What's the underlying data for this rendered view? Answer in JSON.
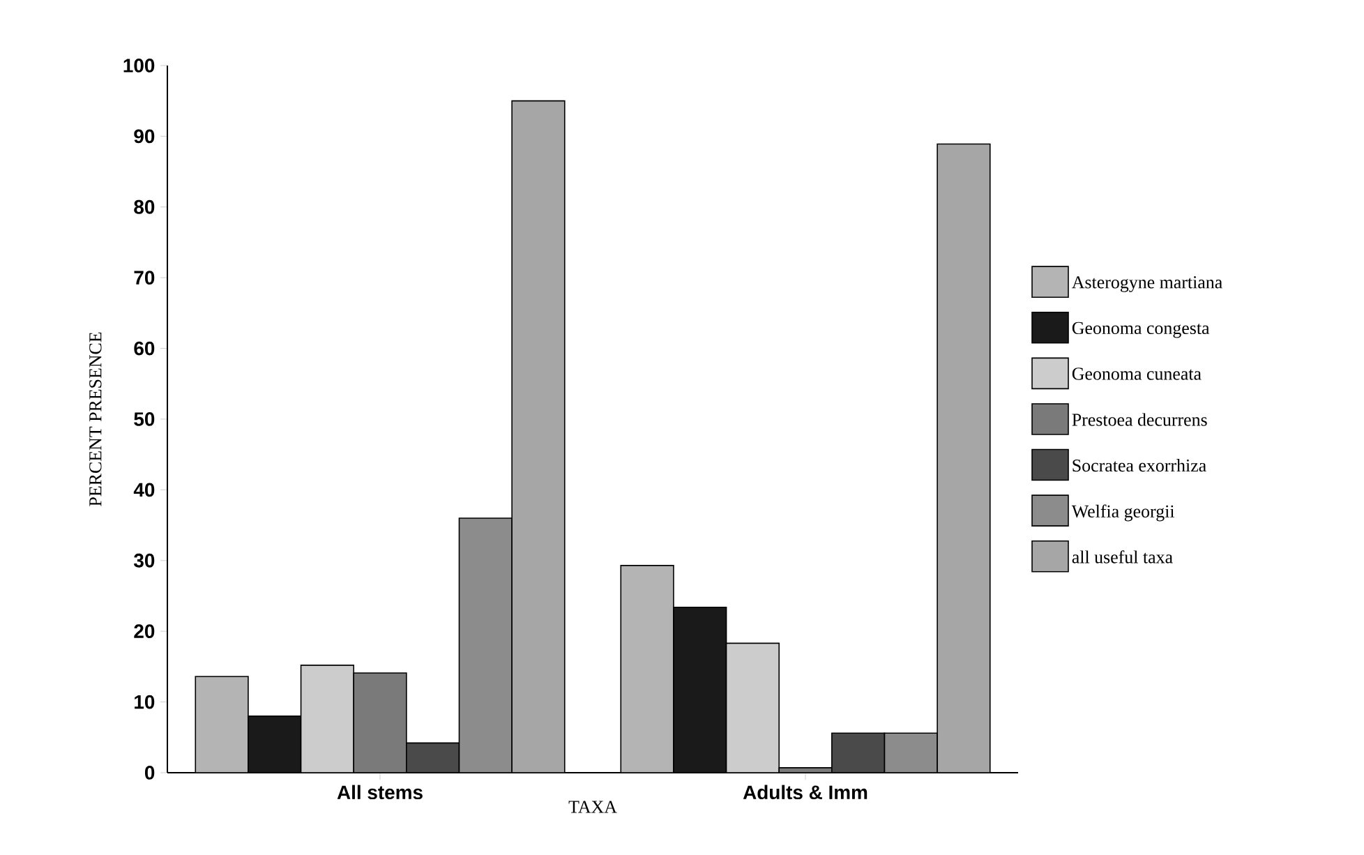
{
  "chart_data": {
    "type": "bar",
    "xlabel": "TAXA",
    "ylabel": "PERCENT PRESENCE",
    "categories": [
      "All stems",
      "Adults & Imm"
    ],
    "series": [
      {
        "name": "Asterogyne martiana",
        "color": "#b4b4b4",
        "values": [
          13.6,
          29.3
        ]
      },
      {
        "name": "Geonoma congesta",
        "color": "#1a1a1a",
        "values": [
          8.0,
          23.4
        ]
      },
      {
        "name": "Geonoma cuneata",
        "color": "#cccccc",
        "values": [
          15.2,
          18.3
        ]
      },
      {
        "name": "Prestoea decurrens",
        "color": "#7a7a7a",
        "values": [
          14.1,
          0.7
        ]
      },
      {
        "name": "Socratea exorrhiza",
        "color": "#4a4a4a",
        "values": [
          4.2,
          5.6
        ]
      },
      {
        "name": "Welfia georgii",
        "color": "#8c8c8c",
        "values": [
          36.0,
          5.6
        ]
      },
      {
        "name": "all useful taxa",
        "color": "#a6a6a6",
        "values": [
          95.0,
          88.9
        ]
      }
    ],
    "ylim": [
      0,
      100
    ],
    "yticks": [
      0,
      10,
      20,
      30,
      40,
      50,
      60,
      70,
      80,
      90,
      100
    ],
    "grid": false,
    "legend": "right"
  }
}
